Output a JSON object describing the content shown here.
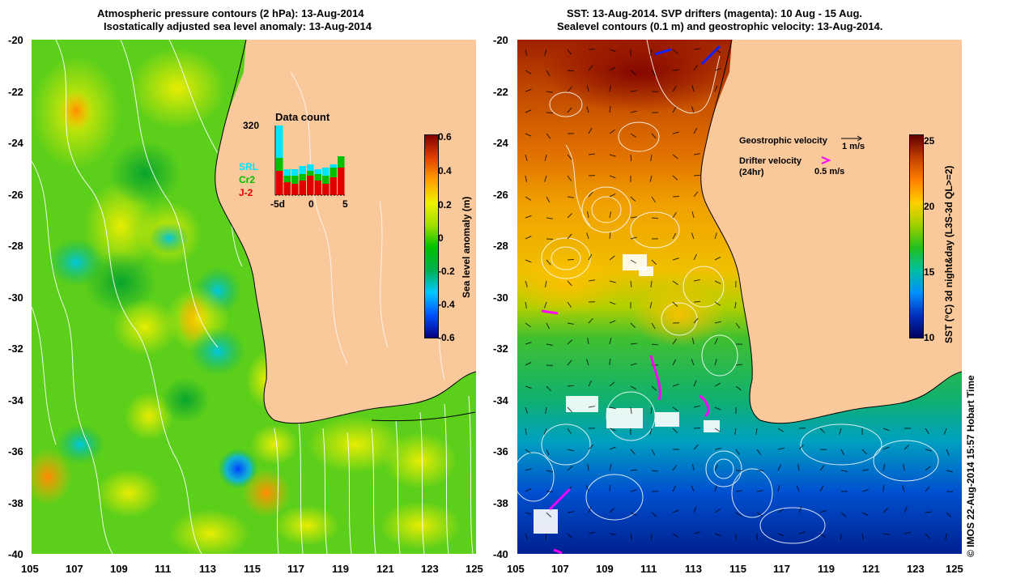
{
  "left_panel": {
    "title_line1": "Atmospheric pressure contours (2 hPa): 13-Aug-2014",
    "title_line2": "Isostatically adjusted sea level anomaly: 13-Aug-2014",
    "x_ticks": [
      "105",
      "107",
      "109",
      "111",
      "113",
      "115",
      "117",
      "119",
      "121",
      "123",
      "125"
    ],
    "y_ticks": [
      "-20",
      "-22",
      "-24",
      "-26",
      "-28",
      "-30",
      "-32",
      "-34",
      "-36",
      "-38",
      "-40"
    ],
    "colorbar": {
      "label": "Sea level anomaly (m)",
      "ticks": [
        "0.6",
        "0.4",
        "0.2",
        "0",
        "-0.2",
        "-0.4",
        "-0.6"
      ]
    },
    "data_count": {
      "title": "Data count",
      "max_label": "320",
      "x_labels": [
        "-5d",
        "0",
        "5"
      ],
      "legend": [
        {
          "name": "SRL",
          "color": "#00e5ff"
        },
        {
          "name": "Cr2",
          "color": "#00c000"
        },
        {
          "name": "J-2",
          "color": "#e00000"
        }
      ]
    }
  },
  "right_panel": {
    "title_line1": "SST: 13-Aug-2014. SVP drifters (magenta): 10 Aug - 15 Aug.",
    "title_line2": "Sealevel contours (0.1 m) and geostrophic velocity: 13-Aug-2014.",
    "x_ticks": [
      "105",
      "107",
      "109",
      "111",
      "113",
      "115",
      "117",
      "119",
      "121",
      "123",
      "125"
    ],
    "y_ticks": [
      "-20",
      "-22",
      "-24",
      "-26",
      "-28",
      "-30",
      "-32",
      "-34",
      "-36",
      "-38",
      "-40"
    ],
    "colorbar": {
      "label": "SST (°C) 3d night&day (L3S-3d QL>=2)",
      "ticks": [
        "25",
        "20",
        "15",
        "10"
      ]
    },
    "annotations": {
      "geo_label": "Geostrophic velocity",
      "geo_scale": "1 m/s",
      "drifter_label": "Drifter velocity",
      "drifter_sub": "(24hr)",
      "drifter_scale": "0.5 m/s"
    }
  },
  "credit": "© IMOS 22-Aug-2014 15:57 Hobart Time",
  "colors": {
    "land": "#f9c89b",
    "sla_ramp": [
      "#00007a",
      "#0050ff",
      "#00c8ff",
      "#00b050",
      "#00c000",
      "#a0e000",
      "#f0f000",
      "#ffa000",
      "#e04000",
      "#800000"
    ],
    "sst_ramp": [
      "#000060",
      "#0030c0",
      "#0090ff",
      "#00c0a0",
      "#20c020",
      "#a0d000",
      "#ffd000",
      "#ff8000",
      "#c04000",
      "#600000"
    ],
    "drifter": "#ff00ff"
  }
}
